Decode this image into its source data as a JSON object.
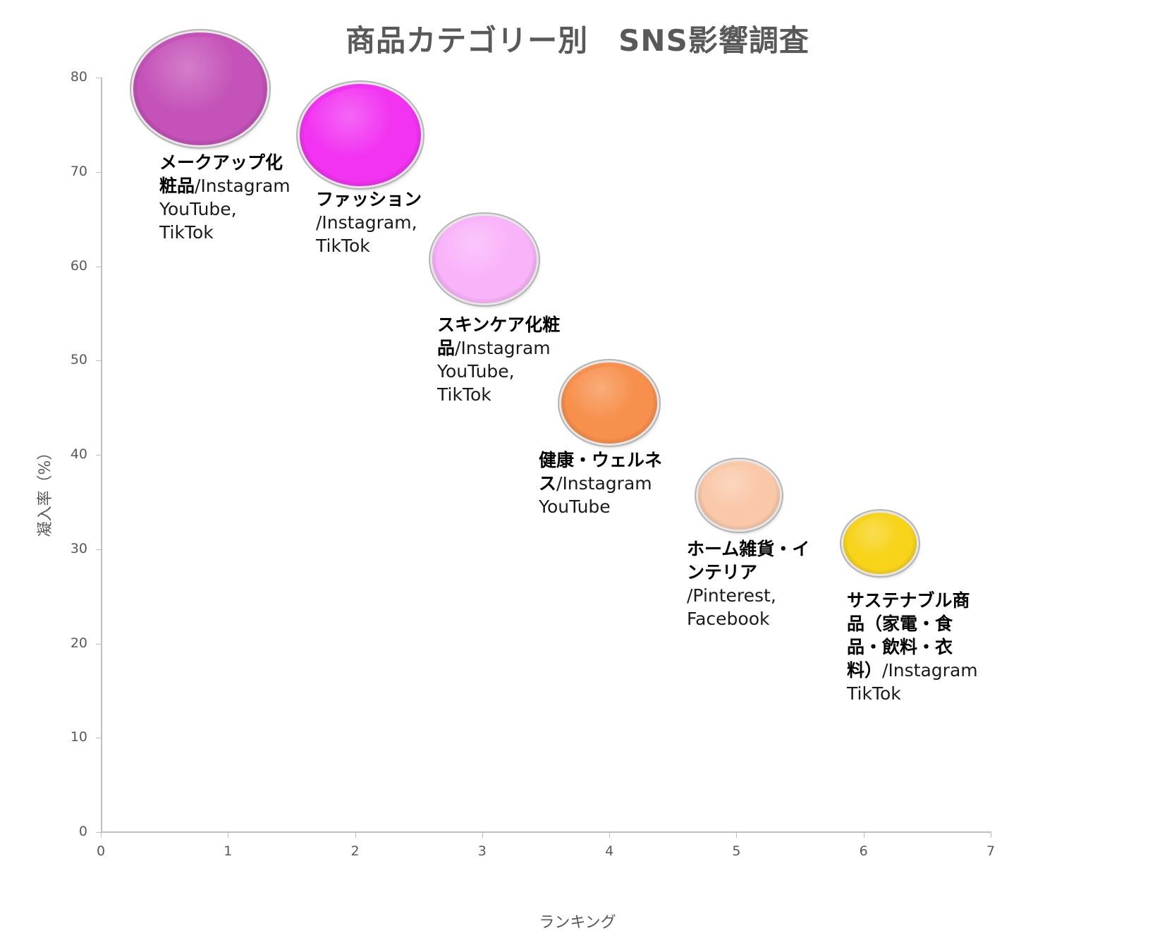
{
  "chart_data": {
    "type": "bubble",
    "title": "商品カテゴリー別　SNS影響調査",
    "xlabel": "ランキング",
    "ylabel": "凝入率（%）",
    "xlim": [
      0,
      7
    ],
    "ylim": [
      0,
      80
    ],
    "x_ticks": [
      "0",
      "1",
      "2",
      "3",
      "4",
      "5",
      "6",
      "7"
    ],
    "y_ticks": [
      "0",
      "10",
      "20",
      "30",
      "40",
      "50",
      "60",
      "70",
      "80"
    ],
    "grid": false,
    "legend": "none",
    "series": [
      {
        "name": "メークアップ化粧品",
        "sns": "/Instagram YouTube, TikTok",
        "x": 0.78,
        "y": 78.8,
        "size": 190,
        "color": "#c452b8",
        "label_bold": "メークアップ化粧品",
        "label_rest": "/Instagram",
        "label_lines": [
          "YouTube,",
          "TikTok"
        ]
      },
      {
        "name": "ファッション",
        "sns": "/Instagram, TikTok",
        "x": 2.04,
        "y": 73.9,
        "size": 172,
        "color": "#f233f2",
        "label_bold": "ファッション",
        "label_rest": "",
        "label_lines": [
          "/Instagram,",
          "TikTok"
        ]
      },
      {
        "name": "スキンケア化粧品",
        "sns": "/Instagram YouTube, TikTok",
        "x": 3.02,
        "y": 60.7,
        "size": 148,
        "color": "#f9b3f9",
        "label_bold": "スキンケア化粧品",
        "label_rest": "/Instagram",
        "label_lines": [
          "YouTube,",
          "TikTok"
        ]
      },
      {
        "name": "健康・ウェルネス",
        "sns": "/Instagram YouTube",
        "x": 4.0,
        "y": 45.5,
        "size": 136,
        "color": "#f7904d",
        "label_bold": "健康・ウェルネス",
        "label_rest": "/Instagram",
        "label_lines": [
          "YouTube"
        ]
      },
      {
        "name": "ホーム雑貨・インテリア",
        "sns": "/Pinterest, Facebook",
        "x": 5.02,
        "y": 35.7,
        "size": 116,
        "color": "#f9c8a8",
        "label_bold": "ホーム雑貨・インテリア",
        "label_rest": "",
        "label_lines": [
          "/Pinterest,",
          "Facebook"
        ]
      },
      {
        "name": "サステナブル商品（家電・食品・飲料・衣料）",
        "sns": "/Instagram TikTok",
        "x": 6.13,
        "y": 30.6,
        "size": 104,
        "color": "#f7d31a",
        "label_bold": "サステナブル商品（家電・食品・飲料・衣料）",
        "label_rest": "/Instagram",
        "label_lines": [
          "TikTok"
        ]
      }
    ]
  },
  "labels": {
    "b0": {
      "l1": "メークアップ化",
      "l2b": "粧品",
      "l2r": "/Instagram",
      "l3": "YouTube,",
      "l4": "TikTok"
    },
    "b1": {
      "l1": "ファッション",
      "l2": "/Instagram,",
      "l3": "TikTok"
    },
    "b2": {
      "l1": "スキンケア化粧",
      "l2b": "品",
      "l2r": "/Instagram",
      "l3": "YouTube,",
      "l4": "TikTok"
    },
    "b3": {
      "l1": "健康・ウェルネ",
      "l2b": "ス",
      "l2r": "/Instagram",
      "l3": "YouTube"
    },
    "b4": {
      "l1": "ホーム雑貨・イ",
      "l2": "ンテリア",
      "l3": "/Pinterest,",
      "l4": "Facebook"
    },
    "b5": {
      "l1": "サステナブル商",
      "l2": "品（家電・食",
      "l3": "品・飲料・衣",
      "l4b": "料）",
      "l4r": "/Instagram",
      "l5": "TikTok"
    }
  }
}
